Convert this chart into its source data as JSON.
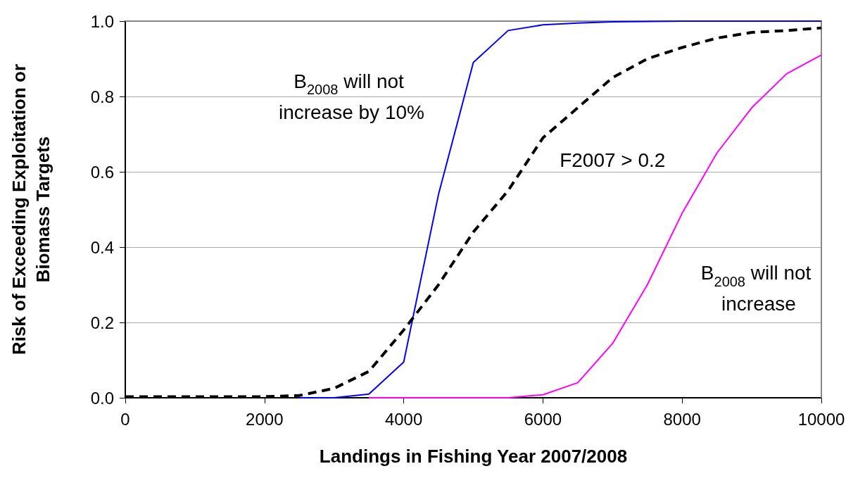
{
  "chart_data": {
    "type": "line",
    "xlabel": "Landings in Fishing Year 2007/2008",
    "ylabel": "Risk of Exceeding Exploitation or Biomass Targets",
    "x": [
      0,
      500,
      1000,
      1500,
      2000,
      2500,
      3000,
      3500,
      4000,
      4500,
      5000,
      5500,
      6000,
      6500,
      7000,
      7500,
      8000,
      8500,
      9000,
      9500,
      10000
    ],
    "series": [
      {
        "name": "B$_{2008}$ will not increase by 10%",
        "color": "#0000ff",
        "line_style": "solid",
        "x": [
          2500,
          3000,
          3500,
          4000,
          4500,
          5000,
          5500,
          6000,
          6500,
          7000,
          7500,
          8000,
          8500,
          9000,
          9500,
          10000
        ],
        "values": [
          0,
          0,
          0.01,
          0.095,
          0.54,
          0.89,
          0.975,
          0.99,
          0.995,
          0.998,
          0.999,
          1,
          1,
          1,
          1,
          1
        ]
      },
      {
        "name": "F2007 > 0.2",
        "color": "#000000",
        "line_style": "dashed",
        "values": [
          0.003,
          0.003,
          0.003,
          0.003,
          0.003,
          0.006,
          0.025,
          0.07,
          0.18,
          0.3,
          0.44,
          0.55,
          0.69,
          0.77,
          0.85,
          0.9,
          0.93,
          0.955,
          0.97,
          0.975,
          0.982
        ]
      },
      {
        "name": "B$_{2008}$ will not increase",
        "color": "#ff00ff",
        "line_style": "solid",
        "x": [
          3500,
          4000,
          4500,
          5000,
          5500,
          6000,
          6500,
          7000,
          7500,
          8000,
          8500,
          9000,
          9500,
          10000
        ],
        "values": [
          0,
          0,
          0,
          0,
          0,
          0.008,
          0.04,
          0.144,
          0.3,
          0.49,
          0.65,
          0.77,
          0.86,
          0.91
        ]
      }
    ],
    "xlim": [
      0,
      10000
    ],
    "xticks": [
      0,
      2000,
      4000,
      6000,
      8000,
      10000
    ],
    "ylim": [
      0,
      1
    ],
    "yticks": [
      {
        "value": 0,
        "label": "0.0"
      },
      0.2,
      0.4,
      0.6,
      0.8,
      {
        "value": 1,
        "label": "1.0"
      }
    ],
    "grid": "y",
    "legend": false,
    "marker": "none"
  }
}
